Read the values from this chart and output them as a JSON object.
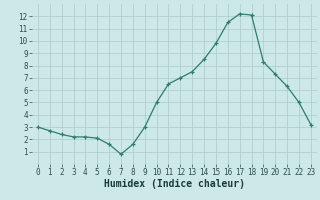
{
  "x": [
    0,
    1,
    2,
    3,
    4,
    5,
    6,
    7,
    8,
    9,
    10,
    11,
    12,
    13,
    14,
    15,
    16,
    17,
    18,
    19,
    20,
    21,
    22,
    23
  ],
  "y": [
    3.0,
    2.7,
    2.4,
    2.2,
    2.2,
    2.1,
    1.6,
    0.8,
    1.6,
    3.0,
    5.0,
    6.5,
    7.0,
    7.5,
    8.5,
    9.8,
    11.5,
    12.2,
    12.1,
    8.3,
    7.3,
    6.3,
    5.0,
    3.2
  ],
  "line_color": "#2e7d6e",
  "marker": "+",
  "bg_color": "#cce8e8",
  "grid_color": "#aacccc",
  "xlabel": "Humidex (Indice chaleur)",
  "xlim": [
    -0.5,
    23.5
  ],
  "ylim": [
    0,
    13
  ],
  "yticks": [
    1,
    2,
    3,
    4,
    5,
    6,
    7,
    8,
    9,
    10,
    11,
    12
  ],
  "xticks": [
    0,
    1,
    2,
    3,
    4,
    5,
    6,
    7,
    8,
    9,
    10,
    11,
    12,
    13,
    14,
    15,
    16,
    17,
    18,
    19,
    20,
    21,
    22,
    23
  ],
  "tick_fontsize": 5.5,
  "label_fontsize": 7.0
}
